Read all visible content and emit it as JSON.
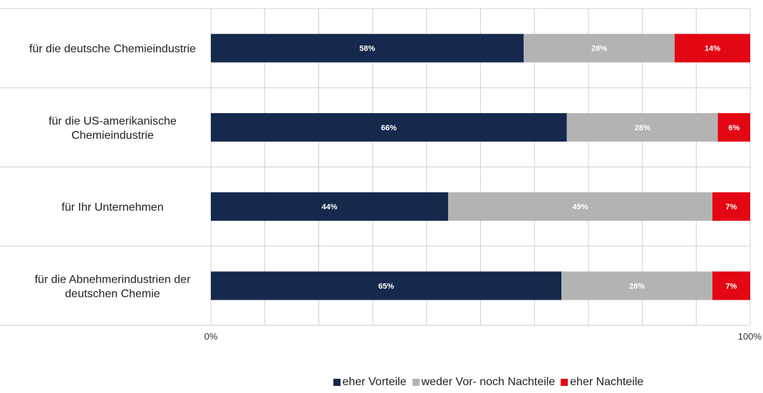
{
  "chart_data": {
    "type": "bar",
    "orientation": "horizontal",
    "stacked": "percent",
    "categories": [
      "für die deutsche Chemieindustrie",
      "für die US-amerikanische Chemieindustrie",
      "für Ihr Unternehmen",
      "für die Abnehmerindustrien der deutschen Chemie"
    ],
    "category_lines": [
      [
        "für die deutsche Chemieindustrie"
      ],
      [
        "für die US-amerikanische",
        "Chemieindustrie"
      ],
      [
        "für Ihr Unternehmen"
      ],
      [
        "für die Abnehmerindustrien der",
        "deutschen Chemie"
      ]
    ],
    "series": [
      {
        "name": "eher Vorteile",
        "values": [
          58,
          66,
          44,
          65
        ],
        "labels": [
          "58%",
          "66%",
          "44%",
          "65%"
        ]
      },
      {
        "name": "weder Vor- noch Nachteile",
        "values": [
          28,
          28,
          49,
          28
        ],
        "labels": [
          "28%",
          "28%",
          "49%",
          "28%"
        ]
      },
      {
        "name": "eher Nachteile",
        "values": [
          14,
          6,
          7,
          7
        ],
        "labels": [
          "14%",
          "6%",
          "7%",
          "7%"
        ]
      }
    ],
    "colors": [
      "#15294d",
      "#b3b3b3",
      "#e30613"
    ],
    "xlim": [
      0,
      100
    ],
    "x_tick_labels": [
      "0%",
      "100%"
    ],
    "grid": true,
    "legend": "bottom",
    "title": "",
    "xlabel": "",
    "ylabel": ""
  }
}
